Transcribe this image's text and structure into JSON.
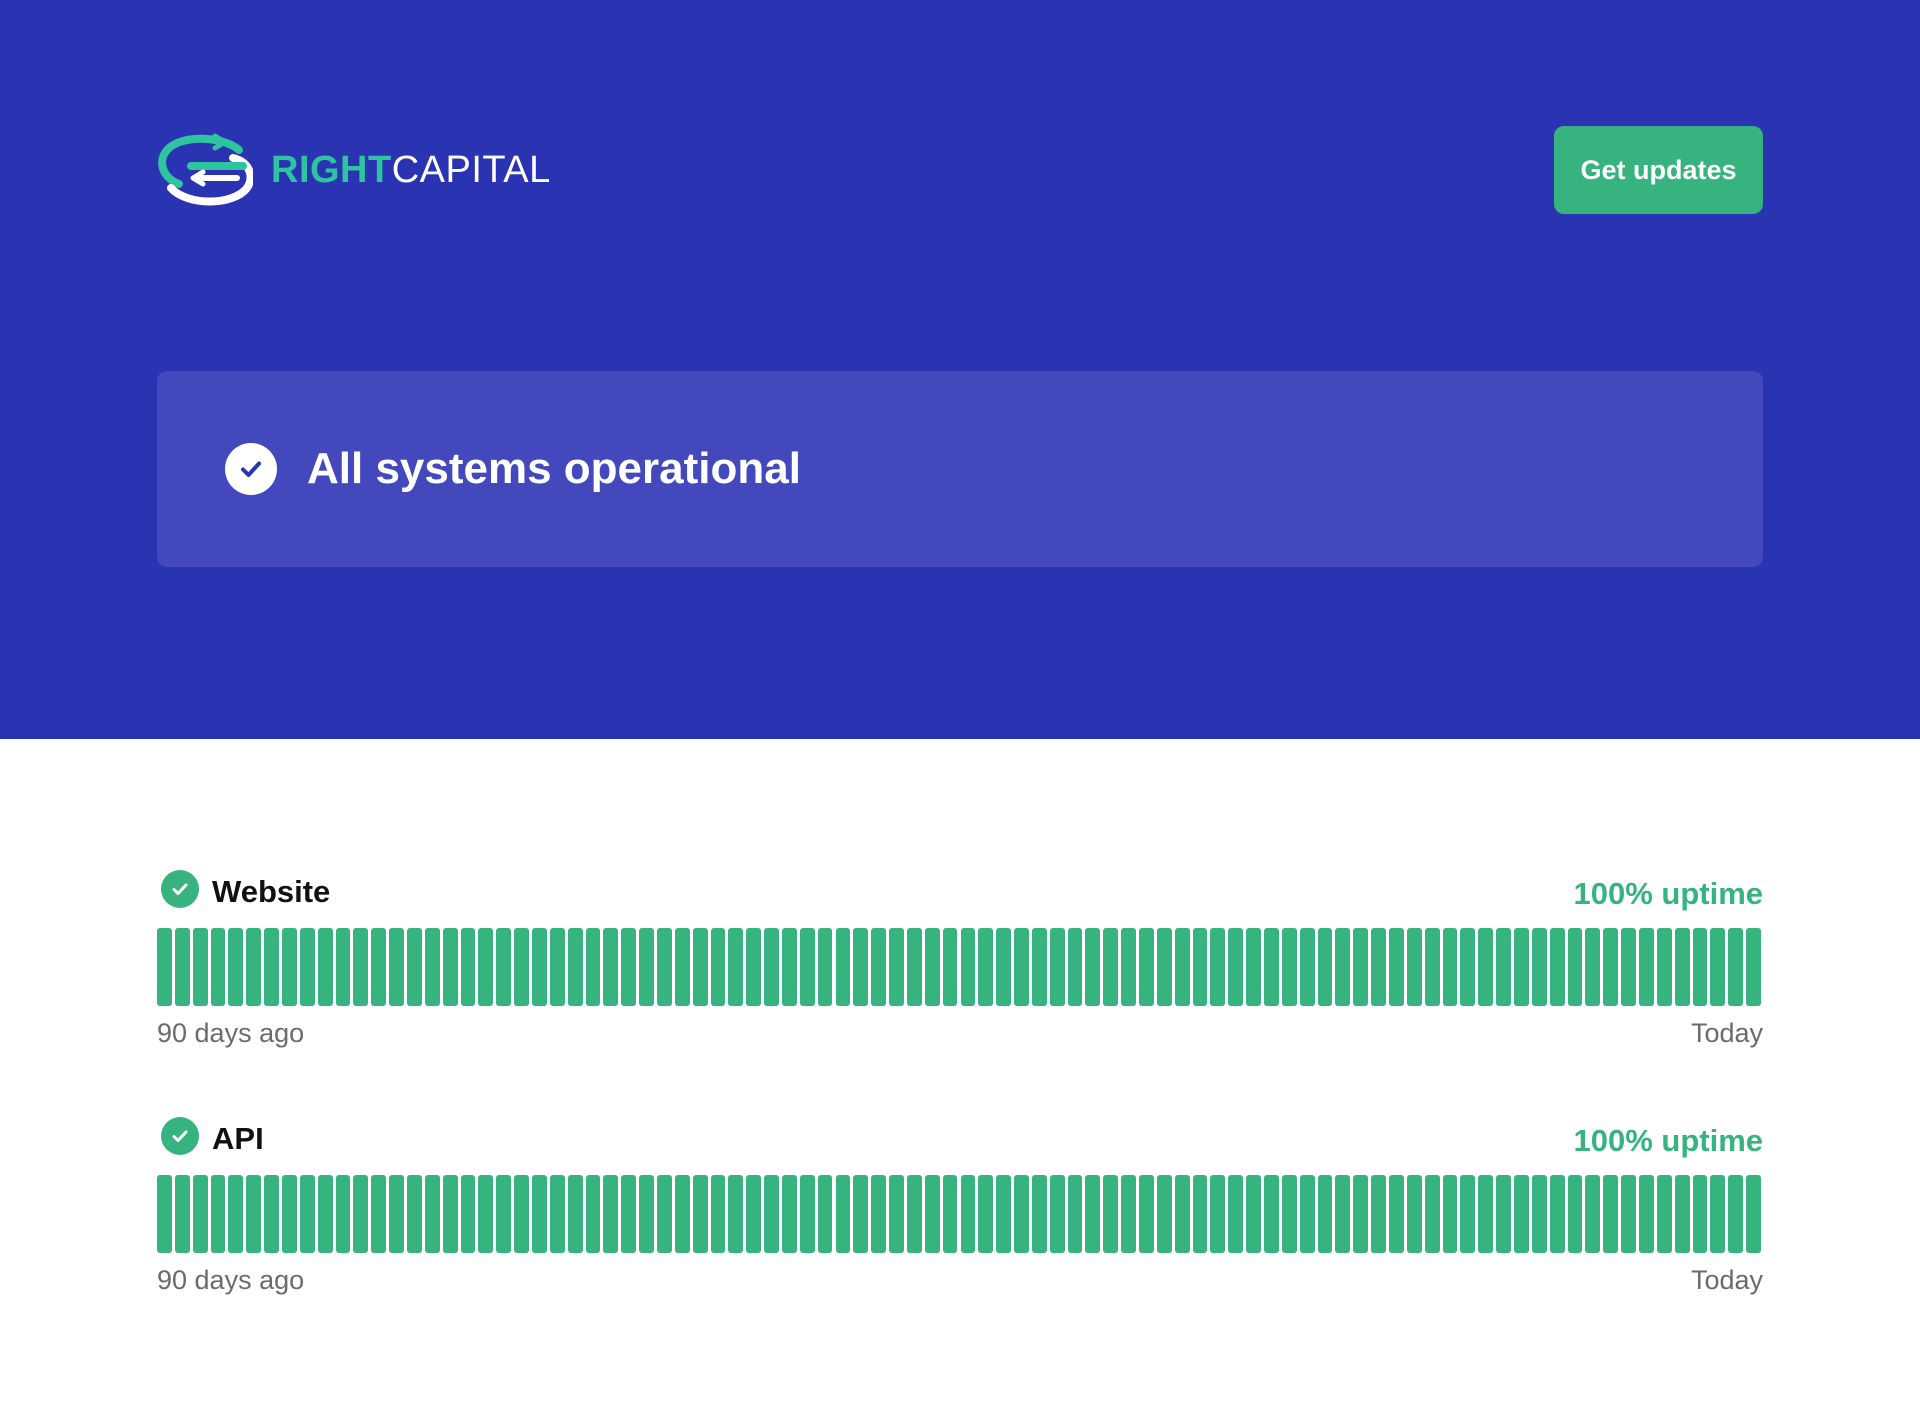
{
  "header": {
    "logo_text_bold": "RIGHT",
    "logo_text_light": "CAPITAL",
    "get_updates_label": "Get updates"
  },
  "status": {
    "text": "All systems operational"
  },
  "components": [
    {
      "name": "Website",
      "uptime": "100% uptime",
      "range_start": "90 days ago",
      "range_end": "Today",
      "days": 90
    },
    {
      "name": "API",
      "uptime": "100% uptime",
      "range_start": "90 days ago",
      "range_end": "Today",
      "days": 90
    }
  ],
  "colors": {
    "hero_bg": "#2a34b3",
    "banner_bg": "#4349bd",
    "accent_green": "#36b37e",
    "logo_teal": "#2ec4a0"
  },
  "icons": {
    "logo": "rightcapital-swirl-logo",
    "status": "check-circle-icon"
  }
}
